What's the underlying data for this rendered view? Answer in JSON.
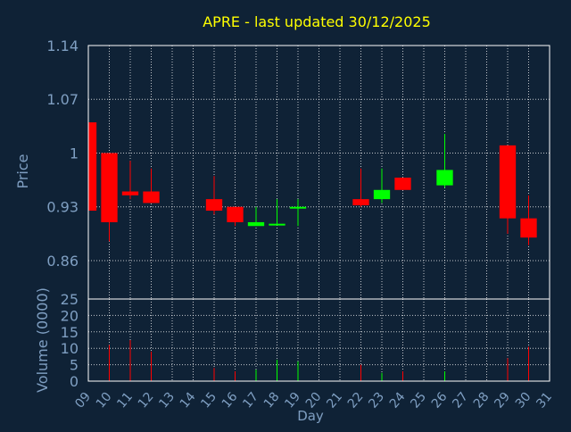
{
  "chart_data": {
    "type": "candlestick",
    "title": "APRE - last updated 30/12/2025",
    "price_axis": {
      "label": "Price",
      "ylim": [
        0.81,
        1.14
      ],
      "ticks": [
        0.86,
        0.93,
        1,
        1.07,
        1.14
      ],
      "tick_labels": [
        "0.86",
        "0.93",
        "1",
        "1.07",
        "1.14"
      ]
    },
    "volume_axis": {
      "label": "Volume (0000)",
      "ylim": [
        0,
        25
      ],
      "ticks": [
        0,
        5,
        10,
        15,
        20,
        25
      ],
      "tick_labels": [
        "0",
        "5",
        "10",
        "15",
        "20",
        "25"
      ]
    },
    "x_axis": {
      "label": "Day",
      "ticks": [
        "09",
        "10",
        "11",
        "12",
        "13",
        "14",
        "15",
        "16",
        "17",
        "18",
        "19",
        "20",
        "21",
        "22",
        "23",
        "24",
        "25",
        "26",
        "27",
        "28",
        "29",
        "30",
        "31"
      ]
    },
    "grid": true,
    "colors": {
      "background": "#0f2236",
      "frame": "#ffffff",
      "grid": "#ffffff",
      "title": "#ffff00",
      "axis_text": "#7f9fc2",
      "up": "#00ff00",
      "down": "#ff0000"
    },
    "candles": [
      {
        "day": "09",
        "open": 1.04,
        "high": 1.04,
        "low": 0.92,
        "close": 0.925,
        "volume": 0
      },
      {
        "day": "10",
        "open": 1.0,
        "high": 1.0,
        "low": 0.885,
        "close": 0.91,
        "volume": 11
      },
      {
        "day": "11",
        "open": 0.95,
        "high": 0.99,
        "low": 0.94,
        "close": 0.945,
        "volume": 12.5
      },
      {
        "day": "12",
        "open": 0.95,
        "high": 0.98,
        "low": 0.935,
        "close": 0.935,
        "volume": 9
      },
      {
        "day": "15",
        "open": 0.94,
        "high": 0.97,
        "low": 0.92,
        "close": 0.925,
        "volume": 4
      },
      {
        "day": "16",
        "open": 0.93,
        "high": 0.93,
        "low": 0.905,
        "close": 0.91,
        "volume": 3
      },
      {
        "day": "17",
        "open": 0.905,
        "high": 0.93,
        "low": 0.905,
        "close": 0.91,
        "volume": 3.5
      },
      {
        "day": "18",
        "open": 0.907,
        "high": 0.94,
        "low": 0.907,
        "close": 0.908,
        "volume": 6.5
      },
      {
        "day": "19",
        "open": 0.928,
        "high": 0.94,
        "low": 0.905,
        "close": 0.93,
        "volume": 6
      },
      {
        "day": "22",
        "open": 0.94,
        "high": 0.98,
        "low": 0.93,
        "close": 0.932,
        "volume": 5
      },
      {
        "day": "23",
        "open": 0.94,
        "high": 0.98,
        "low": 0.935,
        "close": 0.952,
        "volume": 2.5
      },
      {
        "day": "24",
        "open": 0.968,
        "high": 0.968,
        "low": 0.952,
        "close": 0.952,
        "volume": 3
      },
      {
        "day": "26",
        "open": 0.958,
        "high": 1.025,
        "low": 0.955,
        "close": 0.978,
        "volume": 3
      },
      {
        "day": "29",
        "open": 1.01,
        "high": 1.01,
        "low": 0.895,
        "close": 0.915,
        "volume": 7
      },
      {
        "day": "30",
        "open": 0.915,
        "high": 0.945,
        "low": 0.88,
        "close": 0.89,
        "volume": 10.5
      }
    ]
  }
}
